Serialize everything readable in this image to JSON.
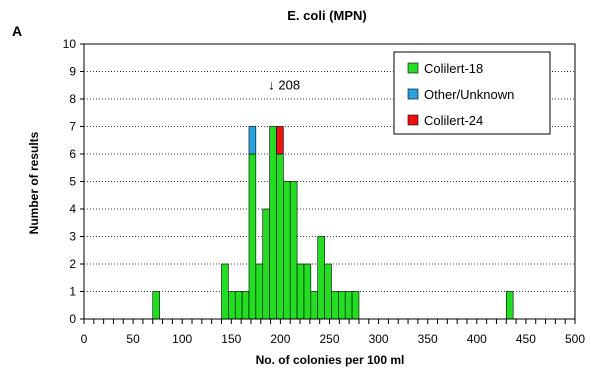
{
  "panel_label": "A",
  "chart_data": {
    "type": "bar",
    "title": "E. coli (MPN)",
    "xlabel": "No. of colonies per 100 ml",
    "ylabel": "Number of results",
    "xlim": [
      0,
      500
    ],
    "ylim": [
      0,
      10
    ],
    "x_ticks": [
      0,
      50,
      100,
      150,
      200,
      250,
      300,
      350,
      400,
      450,
      500
    ],
    "y_ticks": [
      0,
      1,
      2,
      3,
      4,
      5,
      6,
      7,
      8,
      9,
      10
    ],
    "bin_width": 7,
    "grid": "horizontal dotted",
    "legend_position": "top-right",
    "annotation": {
      "text": "↓ 208",
      "x": 208,
      "y": 8.5
    },
    "series": [
      {
        "name": "Colilert-18",
        "color": "#22dd22",
        "bins": [
          {
            "x": 70,
            "count": 1
          },
          {
            "x": 140,
            "count": 2
          },
          {
            "x": 147,
            "count": 1
          },
          {
            "x": 154,
            "count": 1
          },
          {
            "x": 161,
            "count": 1
          },
          {
            "x": 168,
            "count": 6
          },
          {
            "x": 175,
            "count": 2
          },
          {
            "x": 182,
            "count": 4
          },
          {
            "x": 189,
            "count": 7
          },
          {
            "x": 196,
            "count": 6
          },
          {
            "x": 203,
            "count": 5
          },
          {
            "x": 210,
            "count": 5
          },
          {
            "x": 217,
            "count": 2
          },
          {
            "x": 224,
            "count": 2
          },
          {
            "x": 231,
            "count": 1
          },
          {
            "x": 238,
            "count": 3
          },
          {
            "x": 245,
            "count": 2
          },
          {
            "x": 252,
            "count": 1
          },
          {
            "x": 259,
            "count": 1
          },
          {
            "x": 266,
            "count": 1
          },
          {
            "x": 273,
            "count": 1
          },
          {
            "x": 280,
            "count": 0
          },
          {
            "x": 430,
            "count": 1
          }
        ]
      },
      {
        "name": "Other/Unknown",
        "color": "#29a3e0",
        "bins": [
          {
            "x": 168,
            "count": 1
          }
        ]
      },
      {
        "name": "Colilert-24",
        "color": "#ee1111",
        "bins": [
          {
            "x": 196,
            "count": 1
          }
        ]
      }
    ]
  }
}
